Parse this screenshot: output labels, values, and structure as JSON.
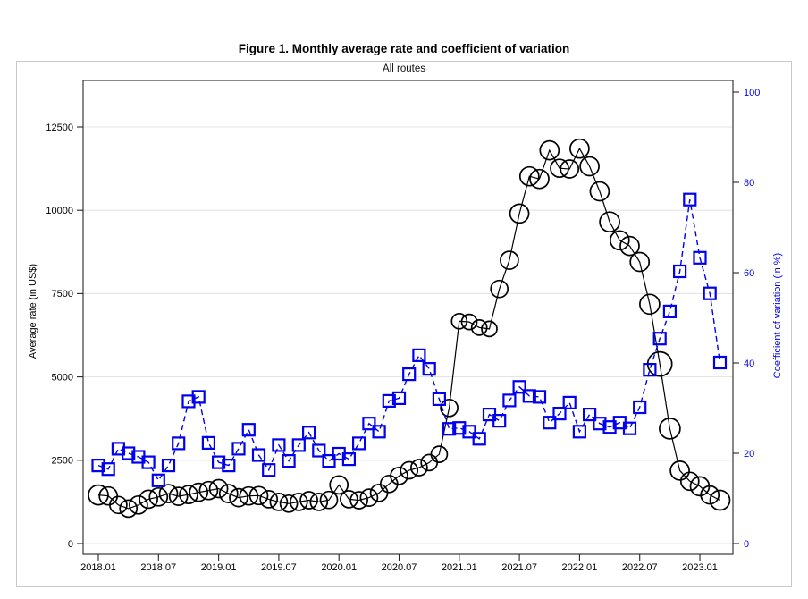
{
  "figure": {
    "title": "Figure 1. Monthly average rate and coefficient of variation",
    "subtitle": "All routes"
  },
  "colors": {
    "rate_series": "#000000",
    "cv_series": "#0000ee",
    "gridline": "#e4e4e4",
    "frame": "#262626",
    "figure_border": "#c9c9c9",
    "background": "#ffffff"
  },
  "chart_data": {
    "type": "line",
    "title": "Figure 1. Monthly average rate and coefficient of variation",
    "subtitle": "All routes",
    "grid": true,
    "legend_position": "none",
    "x_tick_labels": [
      "2018.01",
      "2018.07",
      "2019.01",
      "2019.07",
      "2020.01",
      "2020.07",
      "2021.01",
      "2021.07",
      "2022.01",
      "2022.07",
      "2023.01"
    ],
    "x": [
      "2018.01",
      "2018.02",
      "2018.03",
      "2018.04",
      "2018.05",
      "2018.06",
      "2018.07",
      "2018.08",
      "2018.09",
      "2018.10",
      "2018.11",
      "2018.12",
      "2019.01",
      "2019.02",
      "2019.03",
      "2019.04",
      "2019.05",
      "2019.06",
      "2019.07",
      "2019.08",
      "2019.09",
      "2019.10",
      "2019.11",
      "2019.12",
      "2020.01",
      "2020.02",
      "2020.03",
      "2020.04",
      "2020.05",
      "2020.06",
      "2020.07",
      "2020.08",
      "2020.09",
      "2020.10",
      "2020.11",
      "2020.12",
      "2021.01",
      "2021.02",
      "2021.03",
      "2021.04",
      "2021.05",
      "2021.06",
      "2021.07",
      "2021.08",
      "2021.09",
      "2021.10",
      "2021.11",
      "2021.12",
      "2022.01",
      "2022.02",
      "2022.03",
      "2022.04",
      "2022.05",
      "2022.06",
      "2022.07",
      "2022.08",
      "2022.09",
      "2022.10",
      "2022.11",
      "2022.12",
      "2023.01",
      "2023.02",
      "2023.03"
    ],
    "left_axis": {
      "label": "Average rate (in US$)",
      "ticks": [
        0,
        2500,
        5000,
        7500,
        10000,
        12500
      ],
      "range": [
        0,
        13900
      ]
    },
    "right_axis": {
      "label": "Coefficient of variation (in %)",
      "ticks": [
        0,
        20,
        40,
        60,
        80,
        100
      ],
      "range": [
        0,
        102.6
      ],
      "color": "#0000ee"
    },
    "series": [
      {
        "name": "Average rate (in US$)",
        "axis": "left",
        "marker": "circle",
        "line_style": "solid",
        "color": "#000000",
        "values": [
          1460,
          1430,
          1160,
          1050,
          1160,
          1330,
          1400,
          1500,
          1420,
          1470,
          1540,
          1590,
          1650,
          1500,
          1380,
          1430,
          1440,
          1330,
          1250,
          1200,
          1250,
          1300,
          1250,
          1310,
          1760,
          1330,
          1300,
          1380,
          1520,
          1790,
          2030,
          2200,
          2280,
          2430,
          2680,
          4070,
          6670,
          6650,
          6480,
          6440,
          7640,
          8500,
          9900,
          11020,
          10940,
          11800,
          11260,
          11240,
          11850,
          11320,
          10570,
          9650,
          9100,
          8930,
          8450,
          7180,
          5390,
          3450,
          2190,
          1870,
          1720,
          1460,
          1300
        ],
        "marker_sizes": [
          11,
          10,
          9.5,
          9.5,
          10,
          10,
          10,
          10,
          10,
          10,
          10,
          10,
          10,
          10,
          10,
          10,
          10,
          9.5,
          9.5,
          9.5,
          9.5,
          9.5,
          9.5,
          9.5,
          10,
          9.5,
          9.5,
          9.5,
          9.5,
          9.5,
          9.5,
          9.5,
          9,
          9,
          9,
          9.5,
          8.5,
          8.5,
          8.5,
          8.5,
          9.5,
          10,
          10.5,
          10.5,
          10.5,
          10.5,
          10,
          10,
          10.5,
          10.5,
          10.5,
          11,
          10.5,
          10.5,
          10.5,
          11,
          13.5,
          11.5,
          10.5,
          10,
          10.5,
          10,
          11
        ]
      },
      {
        "name": "Coefficient of variation (in %)",
        "axis": "right",
        "marker": "square",
        "line_style": "dashed",
        "color": "#0000ee",
        "values": [
          17.3,
          16.5,
          21,
          20,
          19.2,
          18,
          14,
          17.3,
          22.2,
          31.5,
          32.5,
          22.3,
          18,
          17.3,
          21,
          25.2,
          19.6,
          16.3,
          21.8,
          18.3,
          21.8,
          24.6,
          20.6,
          18.3,
          19.9,
          18.7,
          22.2,
          26.6,
          24.8,
          31.6,
          32.2,
          37.5,
          41.7,
          38.7,
          32,
          25.4,
          25.6,
          24.8,
          23.2,
          28.6,
          27.2,
          31.7,
          34.7,
          32.7,
          32.5,
          26.8,
          28.8,
          31.2,
          24.8,
          28.6,
          26.6,
          25.8,
          26.8,
          25.5,
          30.2,
          38.5,
          45.4,
          51.4,
          60.3,
          76.2,
          63.3,
          55.4,
          40.1
        ]
      }
    ]
  }
}
